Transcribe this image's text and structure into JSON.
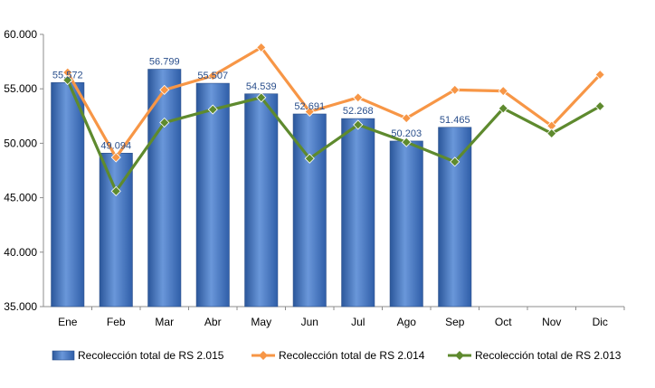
{
  "chart_data": {
    "type": "bar",
    "categories": [
      "Ene",
      "Feb",
      "Mar",
      "Abr",
      "May",
      "Jun",
      "Jul",
      "Ago",
      "Sep",
      "Oct",
      "Nov",
      "Dic"
    ],
    "ylim": [
      35000,
      60000
    ],
    "yticks": [
      35000,
      40000,
      45000,
      50000,
      55000,
      60000
    ],
    "ytick_labels": [
      "35.000",
      "40.000",
      "45.000",
      "50.000",
      "55.000",
      "60.000"
    ],
    "legend_position": "bottom",
    "grid": false,
    "series": [
      {
        "name": "Recolección total de RS 2.015",
        "type": "bar",
        "color": "#3A6DBF",
        "values": [
          55572,
          49094,
          56799,
          55507,
          54539,
          52691,
          52268,
          50203,
          51465,
          null,
          null,
          null
        ],
        "data_labels": [
          "55.572",
          "49.094",
          "56.799",
          "55.507",
          "54.539",
          "52.691",
          "52.268",
          "50.203",
          "51.465",
          "",
          "",
          ""
        ]
      },
      {
        "name": "Recolección total de RS 2.014",
        "type": "line",
        "color": "#F79646",
        "values": [
          56500,
          48700,
          54900,
          56200,
          58800,
          52900,
          54200,
          52300,
          54900,
          54800,
          51600,
          56300
        ]
      },
      {
        "name": "Recolección total de RS 2.013",
        "type": "line",
        "color": "#5E8A2E",
        "values": [
          55800,
          45600,
          51900,
          53100,
          54200,
          48600,
          51700,
          50100,
          48300,
          53200,
          50900,
          53400
        ]
      }
    ]
  }
}
